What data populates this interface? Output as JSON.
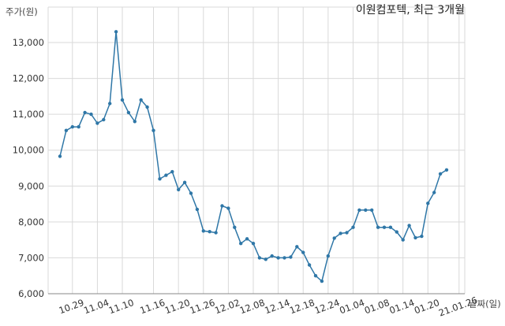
{
  "chart_data": {
    "type": "line",
    "title": "이원컴포텍, 최근 3개월",
    "ylabel": "주가(원)",
    "xlabel": "날짜(일)",
    "ylim": [
      6000,
      13500
    ],
    "y_ticks": [
      "6,000",
      "7,000",
      "8,000",
      "9,000",
      "10,000",
      "11,000",
      "12,000",
      "13,000"
    ],
    "y_tick_values": [
      6000,
      7000,
      8000,
      9000,
      10000,
      11000,
      12000,
      13000
    ],
    "x_tick_labels": [
      "10.29",
      "11.04",
      "11.10",
      "11.16",
      "11.20",
      "11.26",
      "12.02",
      "12.08",
      "12.14",
      "12.18",
      "12.24",
      "01.04",
      "01.08",
      "01.14",
      "01.20",
      "21.01.26"
    ],
    "x_tick_indices": [
      2,
      6,
      10,
      15,
      19,
      23,
      27,
      31,
      35,
      39,
      43,
      47,
      51,
      55,
      59,
      64
    ],
    "grid": true,
    "color": "#2f77a7",
    "values": [
      9830,
      10550,
      10650,
      10650,
      11050,
      11000,
      10750,
      10850,
      11300,
      13300,
      11400,
      11050,
      10800,
      11400,
      11200,
      10550,
      9200,
      9300,
      9400,
      8900,
      9100,
      8800,
      8350,
      7750,
      7730,
      7700,
      8450,
      8380,
      7850,
      7400,
      7530,
      7400,
      7000,
      6960,
      7050,
      7000,
      7000,
      7020,
      7310,
      7150,
      6800,
      6500,
      6350,
      7050,
      7550,
      7680,
      7700,
      7850,
      8330,
      8330,
      8330,
      7850,
      7850,
      7850,
      7720,
      7500,
      7900,
      7560,
      7600,
      8520,
      8820,
      9340,
      9450
    ]
  }
}
